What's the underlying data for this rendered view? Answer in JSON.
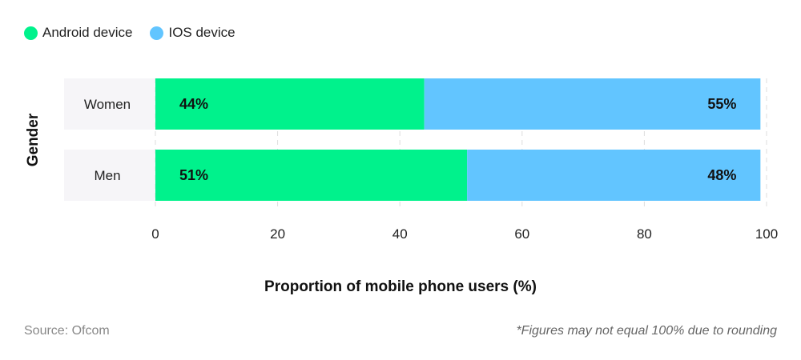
{
  "chart_data": {
    "type": "bar",
    "orientation": "horizontal",
    "stacked": true,
    "categories": [
      "Women",
      "Men"
    ],
    "series": [
      {
        "name": "Android device",
        "values": [
          44,
          51
        ],
        "labels": [
          "44%",
          "51%"
        ],
        "color": "#00f28c"
      },
      {
        "name": "IOS device",
        "values": [
          55,
          48
        ],
        "labels": [
          "55%",
          "48%"
        ],
        "color": "#62c5ff"
      }
    ],
    "xlabel": "Proportion of mobile phone users (%)",
    "ylabel": "Gender",
    "xlim": [
      0,
      100
    ],
    "xticks": [
      0,
      20,
      40,
      60,
      80,
      100
    ],
    "grid": "vertical dashed",
    "legend": "top-left"
  },
  "footer": {
    "source": "Source: Ofcom",
    "note": "*Figures may not equal 100% due to rounding"
  }
}
